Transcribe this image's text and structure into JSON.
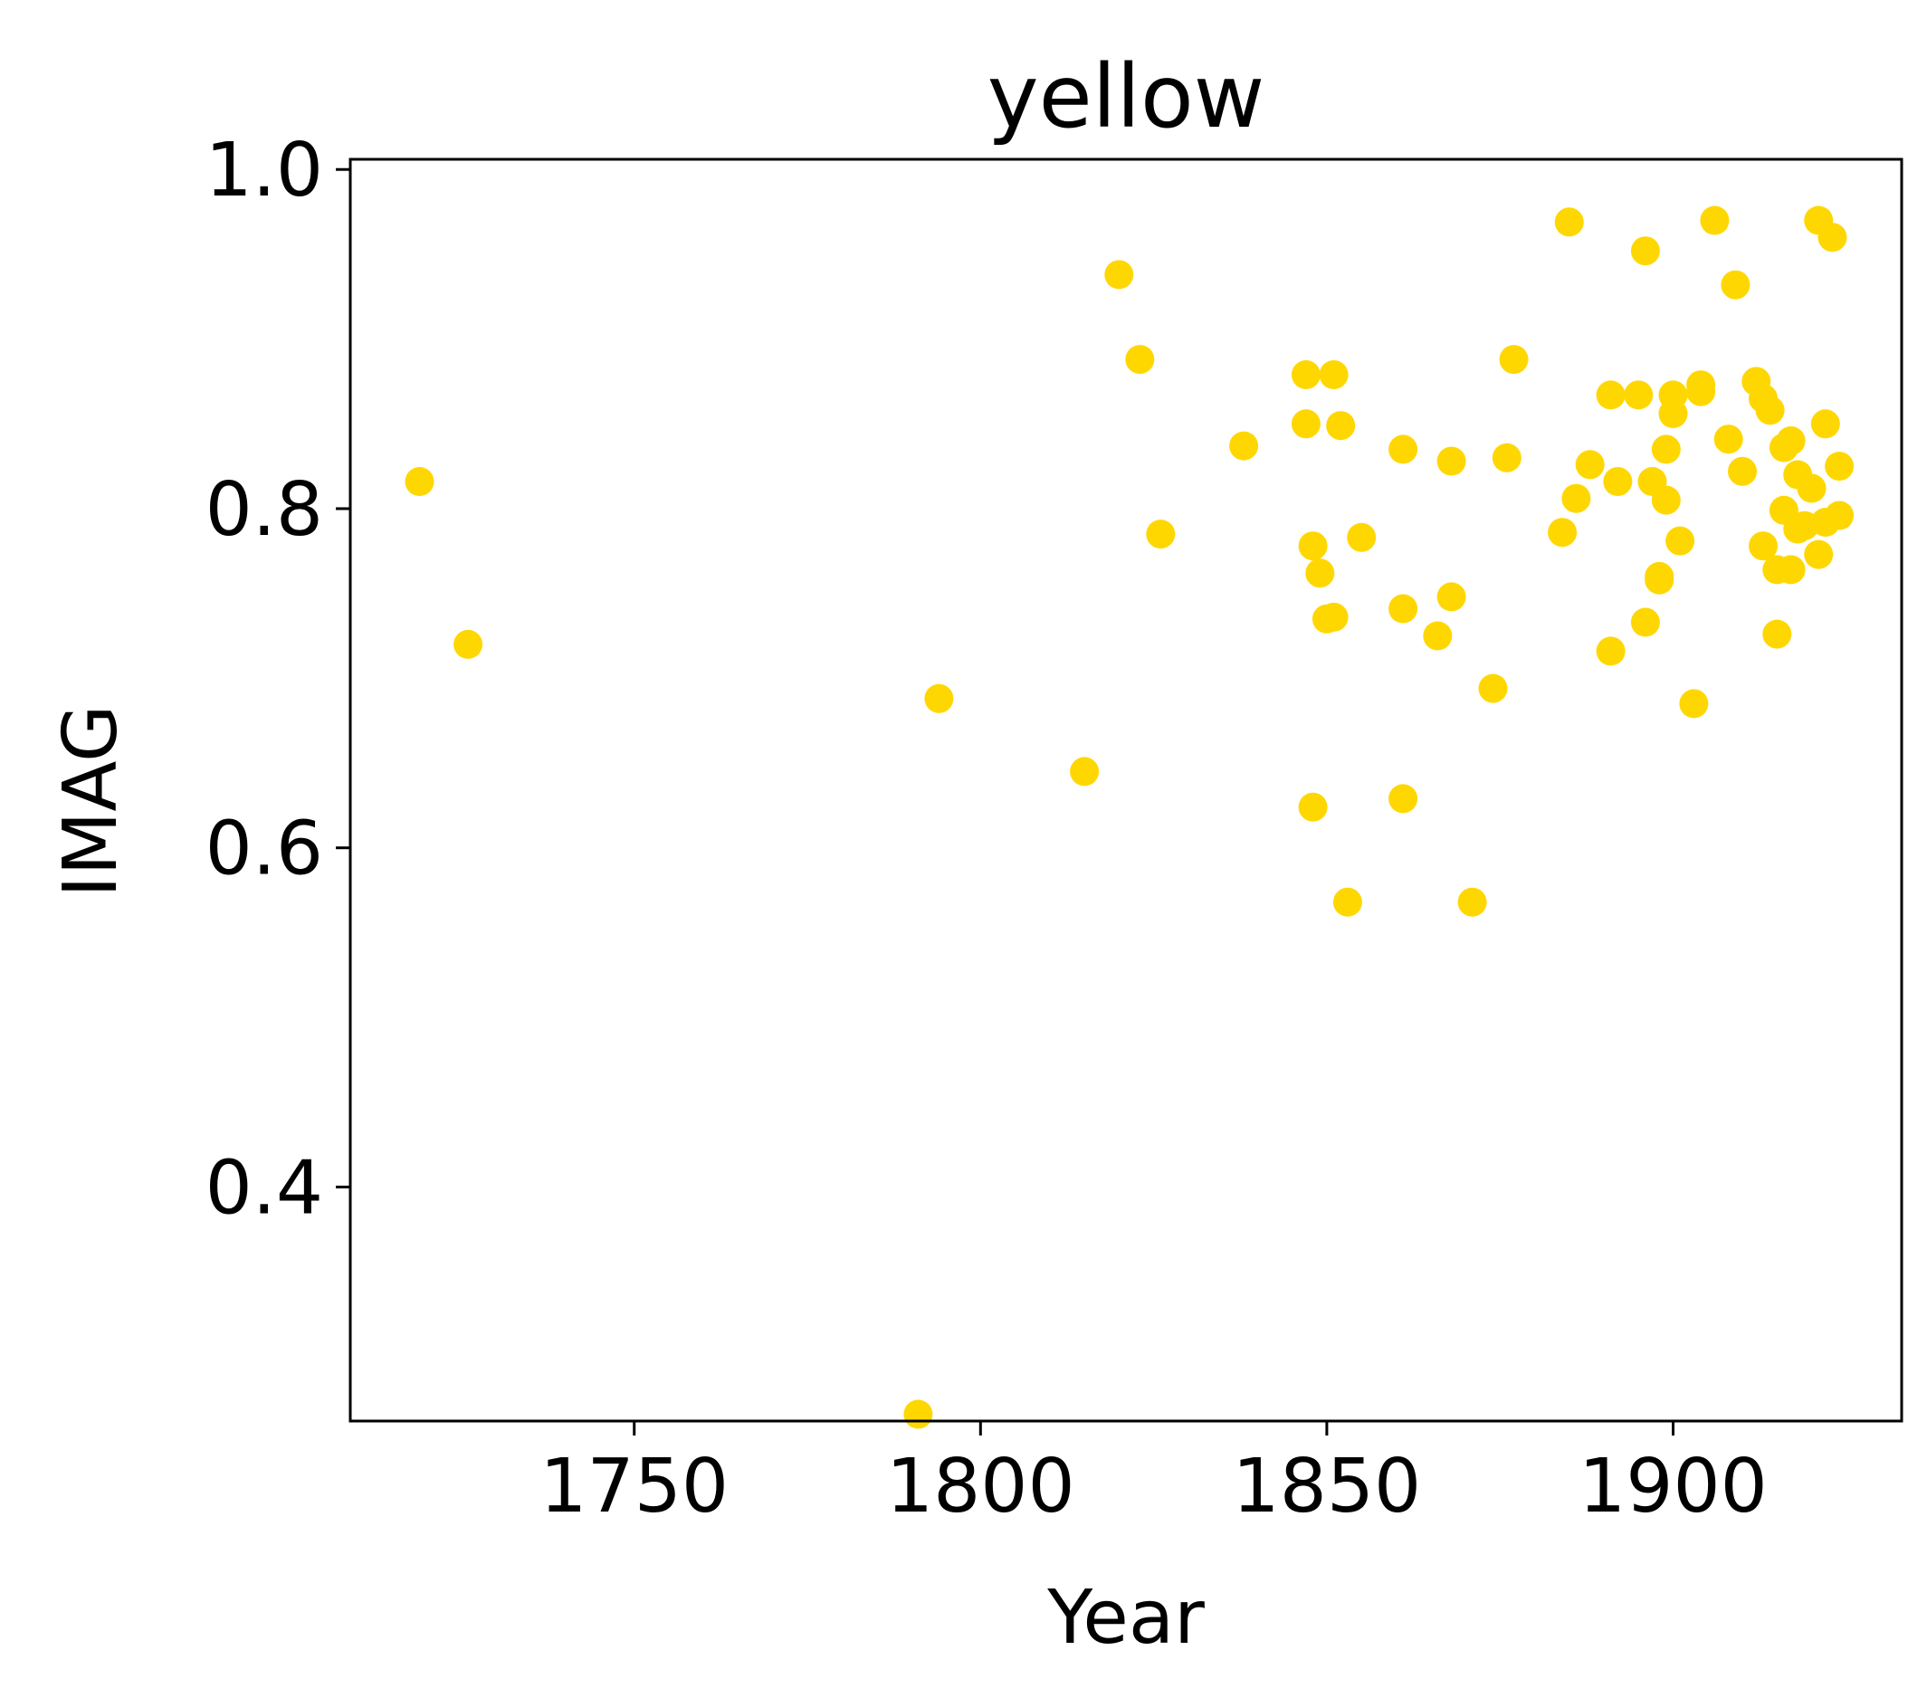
{
  "chart_data": {
    "type": "scatter",
    "title": "yellow",
    "xlabel": "Year",
    "ylabel": "IMAG",
    "xlim": [
      1709,
      1933
    ],
    "ylim": [
      0.262,
      1.006
    ],
    "xticks": [
      1750,
      1800,
      1850,
      1900
    ],
    "xtick_labels": [
      "1750",
      "1800",
      "1850",
      "1900"
    ],
    "yticks": [
      0.4,
      0.6,
      0.8,
      1.0
    ],
    "ytick_labels": [
      "0.4",
      "0.6",
      "0.8",
      "1.0"
    ],
    "grid": false,
    "marker_color": "#FFD700",
    "series": [
      {
        "x": [
          1719,
          1726,
          1791,
          1794,
          1815,
          1820,
          1823,
          1826,
          1838,
          1847,
          1847,
          1848,
          1848,
          1849,
          1850,
          1851,
          1851,
          1852,
          1853,
          1855,
          1861,
          1861,
          1861,
          1866,
          1868,
          1868,
          1871,
          1874,
          1876,
          1877,
          1884,
          1885,
          1886,
          1888,
          1891,
          1891,
          1892,
          1895,
          1896,
          1896,
          1897,
          1898,
          1898,
          1899,
          1899,
          1900,
          1900,
          1901,
          1903,
          1904,
          1904,
          1906,
          1908,
          1909,
          1910,
          1912,
          1913,
          1913,
          1914,
          1915,
          1915,
          1916,
          1916,
          1917,
          1917,
          1918,
          1918,
          1919,
          1920,
          1921,
          1921,
          1922,
          1922,
          1923,
          1924,
          1924
        ],
        "y": [
          0.816,
          0.72,
          0.266,
          0.688,
          0.645,
          0.938,
          0.888,
          0.785,
          0.837,
          0.879,
          0.85,
          0.778,
          0.624,
          0.762,
          0.735,
          0.879,
          0.736,
          0.849,
          0.568,
          0.783,
          0.835,
          0.741,
          0.629,
          0.725,
          0.828,
          0.748,
          0.568,
          0.694,
          0.83,
          0.888,
          0.786,
          0.969,
          0.806,
          0.826,
          0.867,
          0.716,
          0.816,
          0.867,
          0.733,
          0.952,
          0.816,
          0.758,
          0.76,
          0.835,
          0.805,
          0.867,
          0.856,
          0.781,
          0.685,
          0.873,
          0.869,
          0.97,
          0.841,
          0.932,
          0.822,
          0.875,
          0.865,
          0.778,
          0.858,
          0.726,
          0.764,
          0.836,
          0.799,
          0.764,
          0.84,
          0.82,
          0.788,
          0.79,
          0.812,
          0.773,
          0.97,
          0.85,
          0.792,
          0.96,
          0.825,
          0.796
        ]
      }
    ]
  }
}
